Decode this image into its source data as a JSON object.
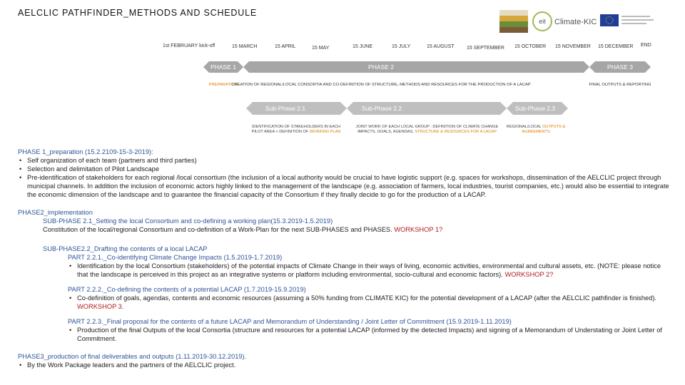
{
  "header": {
    "title": "AELCLIC PATHFINDER_METHODS AND SCHEDULE",
    "logo_text": "Climate-KIC"
  },
  "timeline": {
    "dates": [
      "1st FEBRUARY kick-off",
      "15 MARCH",
      "15 APRIL",
      "15 MAY",
      "15 JUNE",
      "15 JULY",
      "15 AUGUST",
      "15 SEPTEMBER",
      "15 OCTOBER",
      "15 NOVEMBER",
      "15 DECEMBER",
      "END"
    ]
  },
  "phases": [
    {
      "label": "PHASE 1",
      "description": "PREPARATION"
    },
    {
      "label": "PHASE 2",
      "description": "CREATION OF REGIONAL/LOCAL CONSORTIA AND CO-DEFINITION OF STRUCTURE, METHODS AND RESOURCES FOR THE PRODUCTION OF A LACAP"
    },
    {
      "label": "PHASE 3",
      "description": "FINAL OUTPUTS & REPORTING"
    }
  ],
  "subphases": [
    {
      "label": "Sub-Phase 2.1",
      "description": "IDENTIFICATION OF STAKEHOLDERS IN EACH PILOT AREA + DEFINITION OF",
      "highlight": "WORKING PLAN"
    },
    {
      "label": "Sub-Phase 2.2",
      "description": "JOINT WORK OF EACH LOCAL GROUP : DEFINITION OF CLIMATE CHANGE IMPACTS, GOALS, AGENDAS,",
      "highlight": "STRUCTURE & RESOURCES FOR A LACAP"
    },
    {
      "label": "Sub-Phase 2.3",
      "description": "REGIONAL/LOCAL",
      "highlight": "OUTPUTS & AGREEMENTS"
    }
  ],
  "body": {
    "phase1": {
      "title": "PHASE 1_preparation (15.2.2109-15-3-2019):",
      "bullets": [
        "Self organization of each team (partners and third parties)",
        "Selection and delimitation of Pilot Landscape",
        "Pre-identification of stakeholders for each regional /local consortium (the inclusion of a local authority would be crucial to have logistic support (e.g. spaces for workshops, dissemination of the AELCLIC project through municipal channels. In addition the inclusion of economic actors highly linked to the management of the landscape (e.g. association of farmers, local industries, tourist companies, etc.) would also be essential to integrate the economic dimension of the landscape and to guarantee the financial capacity of the Consortium if they finally decide to go for the production of a LACAP."
      ]
    },
    "phase2": {
      "title": "PHASE2_implementation",
      "sub21": {
        "title": "SUB-PHASE 2.1_Setting the local Consortium and co-defining a working plan(15.3.2019-1.5.2019)",
        "text": "Constitution of the local/regional Consortium and co-definition of a Work-Plan for the next SUB-PHASES and PHASES.",
        "workshop": "WORKSHOP 1?"
      },
      "sub22": {
        "title": "SUB-PHASE2.2_Drafting the contents of a local LACAP",
        "parts": [
          {
            "title": "PART 2.2.1._Co-identifying Climate Change Impacts (1.5.2019-1.7.2019)",
            "bullet": "Identification by the local Consortium (stakeholders) of the potential impacts of Climate Change in their ways of living, economic activities, environmental and cultural assets, etc. (NOTE: please notice that the landscape is perceived in this project as an integrative systems or platform including environmental, socio-cultural and economic factors).",
            "workshop": "WORKSHOP 2?"
          },
          {
            "title": "PART 2.2.2._Co-defining the contents of a potential LACAP (1.7.2019-15.9.2019)",
            "bullet": "Co-definition of goals, agendas, contents and economic resources (assuming a 50% funding from CLIMATE KIC) for the potential development of a LACAP (after the AELCLIC pathfinder is finished).",
            "workshop": "WORKSHOP 3."
          },
          {
            "title": "PART 2.2.3._Final proposal for the contents of a future LACAP and Memorandum of Understanding / Joint Letter of Commitment (15.9.2019-1.11.2019)",
            "bullet": "Production of the final Outputs of the local Consortia (structure and resources for a potential LACAP (informed by the detected Impacts) and signing of a Memorandum of Understating or Joint Letter of Commitment."
          }
        ]
      }
    },
    "phase3": {
      "title": "PHASE3_production of final deliverables and outputs (1.11.2019-30.12.2019).",
      "bullets": [
        "By the Work Package leaders and the partners of the AELCLIC project."
      ]
    }
  }
}
